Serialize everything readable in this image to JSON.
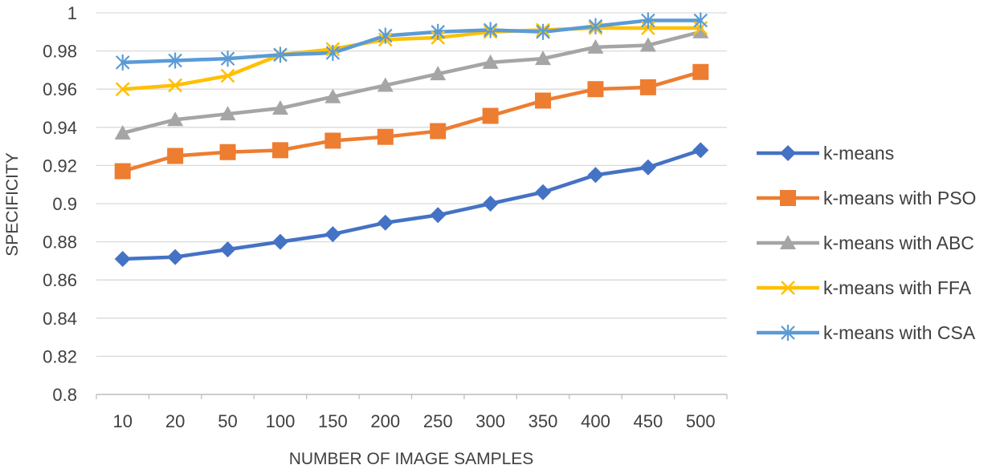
{
  "chart_data": {
    "type": "line",
    "title": "",
    "xlabel": "NUMBER OF IMAGE SAMPLES",
    "ylabel": "SPECIFICITY",
    "categories": [
      "10",
      "20",
      "50",
      "100",
      "150",
      "200",
      "250",
      "300",
      "350",
      "400",
      "450",
      "500"
    ],
    "ylim": [
      0.8,
      1.0
    ],
    "yticks": [
      "0.8",
      "0.82",
      "0.84",
      "0.86",
      "0.88",
      "0.9",
      "0.92",
      "0.94",
      "0.96",
      "0.98",
      "1"
    ],
    "grid": true,
    "legend_position": "right",
    "series": [
      {
        "name": "k-means",
        "color": "#4472C4",
        "marker": "diamond",
        "values": [
          0.871,
          0.872,
          0.876,
          0.88,
          0.884,
          0.89,
          0.894,
          0.9,
          0.906,
          0.915,
          0.919,
          0.928
        ]
      },
      {
        "name": "k-means with PSO",
        "color": "#ED7D31",
        "marker": "square",
        "values": [
          0.917,
          0.925,
          0.927,
          0.928,
          0.933,
          0.935,
          0.938,
          0.946,
          0.954,
          0.96,
          0.961,
          0.969
        ]
      },
      {
        "name": "k-means with ABC",
        "color": "#A5A5A5",
        "marker": "triangle",
        "values": [
          0.937,
          0.944,
          0.947,
          0.95,
          0.956,
          0.962,
          0.968,
          0.974,
          0.976,
          0.982,
          0.983,
          0.99
        ]
      },
      {
        "name": "k-means with FFA",
        "color": "#FFC000",
        "marker": "x",
        "values": [
          0.96,
          0.962,
          0.967,
          0.978,
          0.981,
          0.986,
          0.987,
          0.99,
          0.991,
          0.992,
          0.992,
          0.992
        ]
      },
      {
        "name": "k-means with CSA",
        "color": "#5B9BD5",
        "marker": "star",
        "values": [
          0.974,
          0.975,
          0.976,
          0.978,
          0.979,
          0.988,
          0.99,
          0.991,
          0.99,
          0.993,
          0.996,
          0.996
        ]
      }
    ]
  }
}
